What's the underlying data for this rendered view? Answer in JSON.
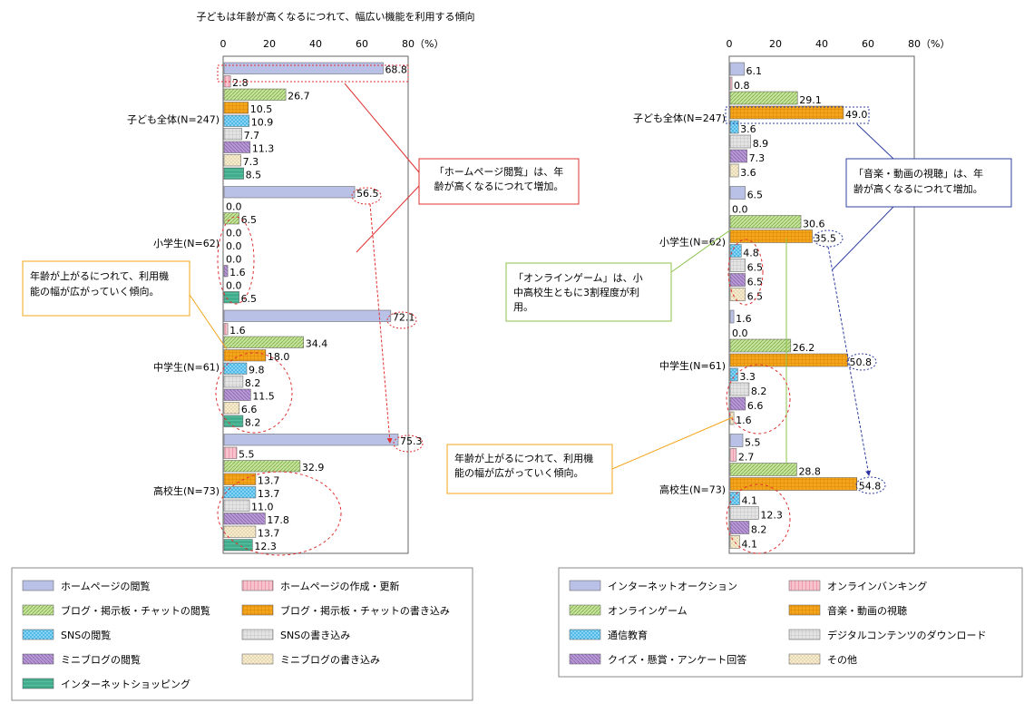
{
  "title": "子どもは年齢が高くなるにつれて、幅広い機能を利用する傾向",
  "colors": [
    "#b9c2e6",
    "#f4a6b6",
    "#b6d98a",
    "#f3a51c",
    "#6fcbf1",
    "#d9d9d9",
    "#a687c7",
    "#efe2b7",
    "#3fae8c"
  ],
  "chart_data": [
    {
      "type": "bar",
      "orientation": "horizontal",
      "xlim": [
        0,
        80
      ],
      "ticks": [
        "0",
        "20",
        "40",
        "60",
        "80（%）"
      ],
      "categories": [
        "子ども全体(N=247)",
        "小学生(N=62)",
        "中学生(N=61)",
        "高校生(N=73)"
      ],
      "series": [
        {
          "name": "ホームページの閲覧",
          "values": [
            68.8,
            56.5,
            72.1,
            75.3
          ]
        },
        {
          "name": "ホームページの作成・更新",
          "values": [
            2.8,
            0.0,
            1.6,
            5.5
          ]
        },
        {
          "name": "ブログ・掲示板・チャットの閲覧",
          "values": [
            26.7,
            6.5,
            34.4,
            32.9
          ]
        },
        {
          "name": "ブログ・掲示板・チャットの書き込み",
          "values": [
            10.5,
            0.0,
            18.0,
            13.7
          ]
        },
        {
          "name": "SNSの閲覧",
          "values": [
            10.9,
            0.0,
            9.8,
            13.7
          ]
        },
        {
          "name": "SNSの書き込み",
          "values": [
            7.7,
            0.0,
            8.2,
            11.0
          ]
        },
        {
          "name": "ミニブログの閲覧",
          "values": [
            11.3,
            1.6,
            11.5,
            17.8
          ]
        },
        {
          "name": "ミニブログの書き込み",
          "values": [
            7.3,
            0.0,
            6.6,
            13.7
          ]
        },
        {
          "name": "インターネットショッピング",
          "values": [
            8.5,
            6.5,
            8.2,
            12.3
          ]
        }
      ],
      "annotations": [
        "「ホームページ閲覧」は、年齢が高くなるにつれて増加。",
        "年齢が上がるにつれて、利用機能の幅が広がっていく傾向。"
      ]
    },
    {
      "type": "bar",
      "orientation": "horizontal",
      "xlim": [
        0,
        80
      ],
      "ticks": [
        "0",
        "20",
        "40",
        "60",
        "80（%）"
      ],
      "categories": [
        "子ども全体(N=247)",
        "小学生(N=62)",
        "中学生(N=61)",
        "高校生(N=73)"
      ],
      "series": [
        {
          "name": "インターネットオークション",
          "values": [
            6.1,
            6.5,
            1.6,
            5.5
          ]
        },
        {
          "name": "オンラインバンキング",
          "values": [
            0.8,
            0.0,
            0.0,
            2.7
          ]
        },
        {
          "name": "オンラインゲーム",
          "values": [
            29.1,
            30.6,
            26.2,
            28.8
          ]
        },
        {
          "name": "音楽・動画の視聴",
          "values": [
            49.0,
            35.5,
            50.8,
            54.8
          ]
        },
        {
          "name": "通信教育",
          "values": [
            3.6,
            4.8,
            3.3,
            4.1
          ]
        },
        {
          "name": "デジタルコンテンツのダウンロード",
          "values": [
            8.9,
            6.5,
            8.2,
            12.3
          ]
        },
        {
          "name": "クイズ・懸賞・アンケート回答",
          "values": [
            7.3,
            6.5,
            6.6,
            8.2
          ]
        },
        {
          "name": "その他",
          "values": [
            3.6,
            6.5,
            1.6,
            4.1
          ]
        }
      ],
      "annotations": [
        "「音楽・動画の視聴」は、年齢が高くなるにつれて増加。",
        "「オンラインゲーム」は、小中高校生ともに3割程度が利用。",
        "年齢が上がるにつれて、利用機能の幅が広がっていく傾向。"
      ]
    }
  ]
}
